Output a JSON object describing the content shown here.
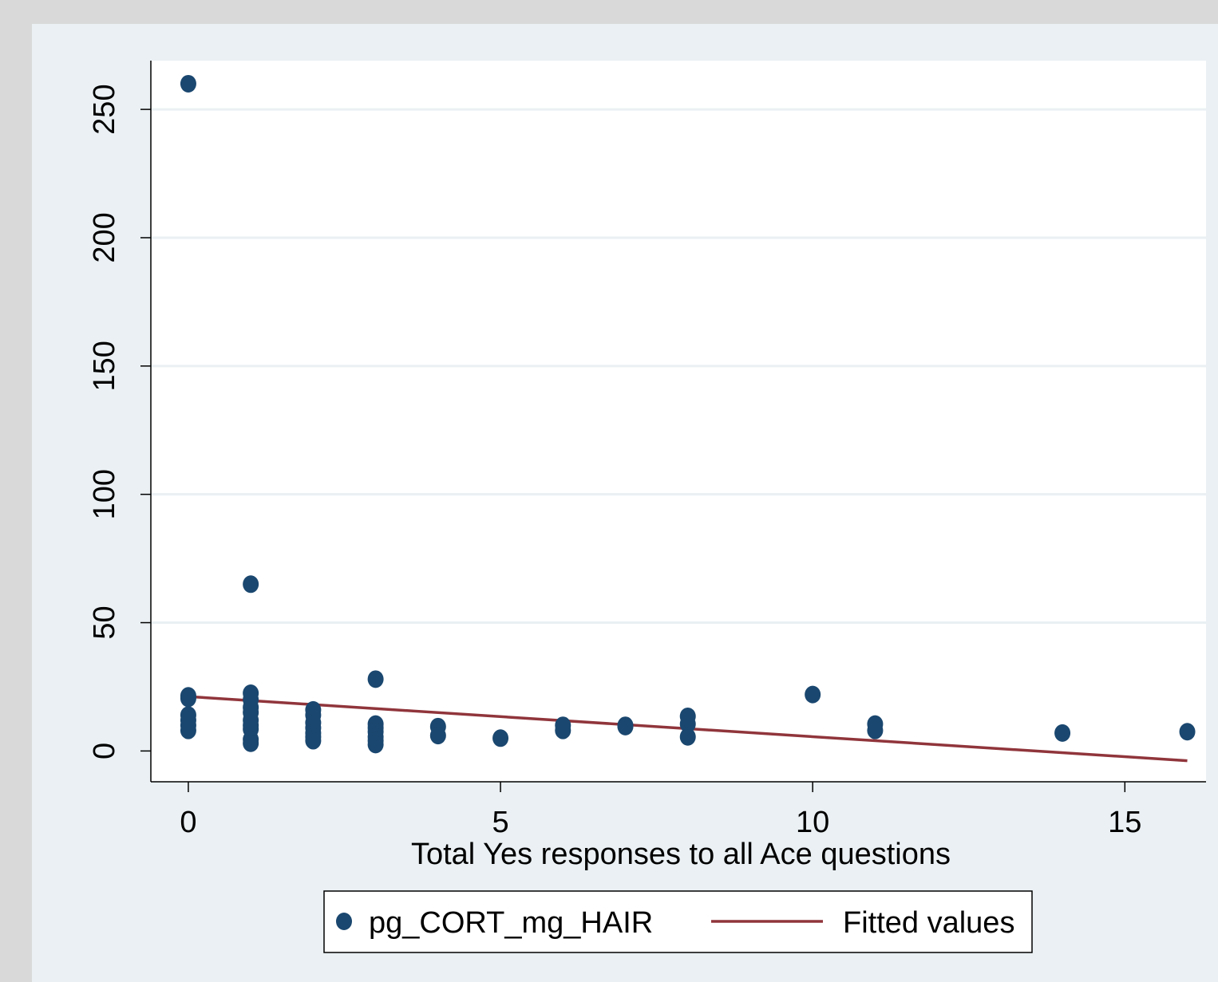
{
  "chart_data": {
    "type": "scatter",
    "title": "",
    "xlabel": "Total Yes responses to all Ace questions",
    "ylabel": "",
    "xlim": [
      -0.6,
      16.3
    ],
    "ylim": [
      -12,
      269
    ],
    "x_ticks": [
      0,
      5,
      10,
      15
    ],
    "y_ticks": [
      0,
      50,
      100,
      150,
      200,
      250
    ],
    "grid": "horizontal",
    "legend_position": "bottom",
    "colors": {
      "outer_background": "#d9d9d9",
      "plot_region": "#eaf0f3",
      "plot_area": "#ffffff",
      "grid": "#eaf0f3",
      "points": "#1a476f",
      "fit_line": "#90353b"
    },
    "series": [
      {
        "name": "pg_CORT_mg_HAIR",
        "kind": "scatter",
        "color": "#1a476f",
        "points": [
          [
            0,
            260
          ],
          [
            0,
            21.5
          ],
          [
            0,
            20.5
          ],
          [
            0,
            14
          ],
          [
            0,
            12
          ],
          [
            0,
            10
          ],
          [
            0,
            8
          ],
          [
            1,
            65
          ],
          [
            1,
            22.5
          ],
          [
            1,
            20
          ],
          [
            1,
            17
          ],
          [
            1,
            15
          ],
          [
            1,
            12
          ],
          [
            1,
            10
          ],
          [
            1,
            8.5
          ],
          [
            1,
            4.5
          ],
          [
            1,
            3
          ],
          [
            2,
            16
          ],
          [
            2,
            14
          ],
          [
            2,
            11
          ],
          [
            2,
            9
          ],
          [
            2,
            7
          ],
          [
            2,
            5.5
          ],
          [
            2,
            4
          ],
          [
            3,
            28
          ],
          [
            3,
            10.5
          ],
          [
            3,
            9
          ],
          [
            3,
            7.5
          ],
          [
            3,
            5.5
          ],
          [
            3,
            4
          ],
          [
            3,
            2.5
          ],
          [
            4,
            9.5
          ],
          [
            4,
            6
          ],
          [
            5,
            5
          ],
          [
            6,
            10
          ],
          [
            6,
            8
          ],
          [
            7,
            10
          ],
          [
            7,
            9.5
          ],
          [
            8,
            13.5
          ],
          [
            8,
            10.5
          ],
          [
            8,
            5.5
          ],
          [
            10,
            22
          ],
          [
            11,
            10.5
          ],
          [
            11,
            8
          ],
          [
            14,
            7
          ],
          [
            16,
            7.5
          ]
        ]
      },
      {
        "name": "Fitted values",
        "kind": "line",
        "color": "#90353b",
        "points": [
          [
            0,
            21.2
          ],
          [
            16,
            -3.8
          ]
        ]
      }
    ]
  }
}
